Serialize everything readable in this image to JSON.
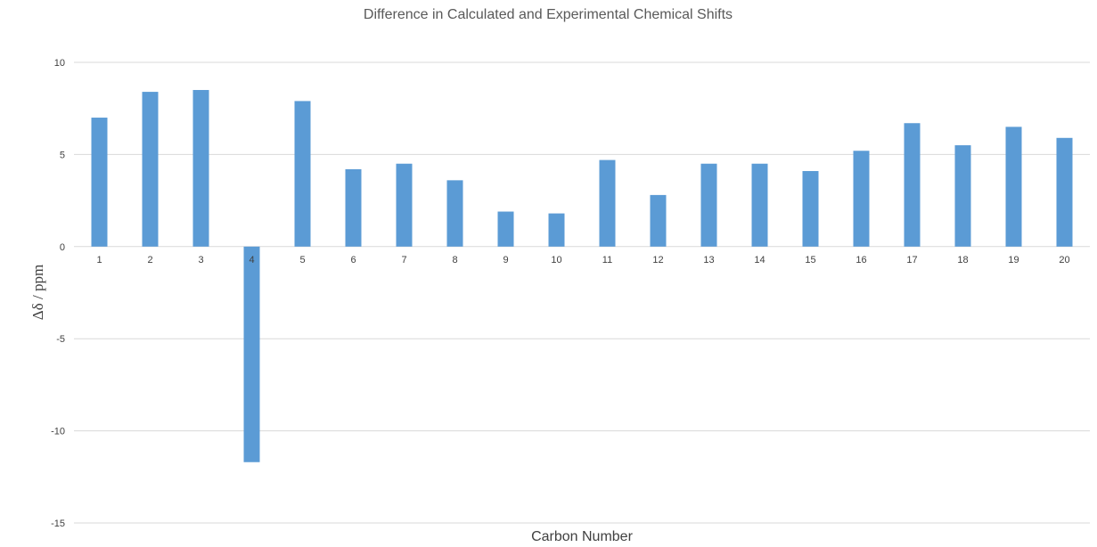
{
  "chart_data": {
    "type": "bar",
    "title": "Difference in Calculated and Experimental Chemical Shifts",
    "xlabel": "Carbon Number",
    "ylabel": "Δδ / ppm",
    "categories": [
      "1",
      "2",
      "3",
      "4",
      "5",
      "6",
      "7",
      "8",
      "9",
      "10",
      "11",
      "12",
      "13",
      "14",
      "15",
      "16",
      "17",
      "18",
      "19",
      "20"
    ],
    "values": [
      7.0,
      8.4,
      8.5,
      -11.7,
      7.9,
      4.2,
      4.5,
      3.6,
      1.9,
      1.8,
      4.7,
      2.8,
      4.5,
      4.5,
      4.1,
      5.2,
      6.7,
      5.5,
      6.5,
      5.9
    ],
    "ylim": [
      -15,
      10
    ],
    "yticks": [
      "-15",
      "-10",
      "-5",
      "0",
      "5",
      "10"
    ],
    "ytick_values": [
      -15,
      -10,
      -5,
      0,
      5,
      10
    ],
    "grid": true,
    "legend": "none",
    "bar_color": "#5b9bd5"
  }
}
